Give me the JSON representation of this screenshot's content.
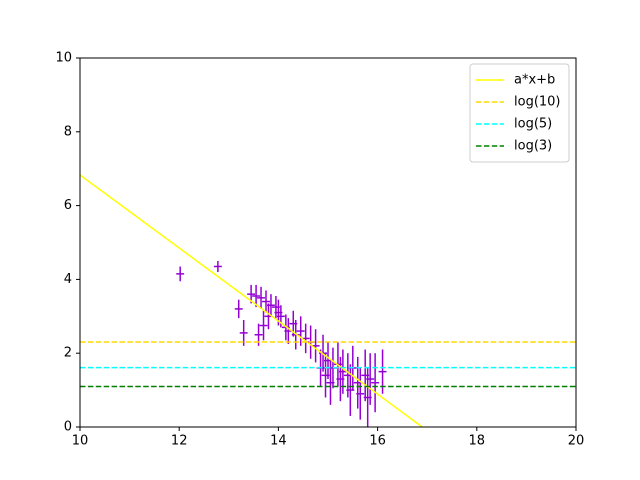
{
  "chart_data": {
    "type": "line",
    "xlim": [
      10,
      20
    ],
    "ylim": [
      0,
      10
    ],
    "xticks": [
      10,
      12,
      14,
      16,
      18,
      20
    ],
    "yticks": [
      0,
      2,
      4,
      6,
      8,
      10
    ],
    "legend": "upper right",
    "series": [
      {
        "type": "errorbar",
        "color": "#9400d3",
        "x": [
          12.02,
          12.78,
          13.2,
          13.3,
          13.45,
          13.55,
          13.6,
          13.65,
          13.7,
          13.75,
          13.8,
          13.85,
          13.95,
          14.0,
          14.05,
          14.15,
          14.2,
          14.3,
          14.35,
          14.45,
          14.55,
          14.65,
          14.75,
          14.85,
          14.9,
          14.95,
          15.0,
          15.05,
          15.1,
          15.2,
          15.25,
          15.3,
          15.4,
          15.45,
          15.5,
          15.6,
          15.65,
          15.75,
          15.8,
          15.85,
          15.95,
          16.1
        ],
        "values": [
          4.15,
          4.35,
          3.2,
          2.55,
          3.6,
          3.55,
          2.5,
          3.5,
          2.75,
          3.4,
          3.0,
          3.3,
          3.25,
          3.1,
          3.0,
          2.7,
          2.6,
          2.8,
          2.5,
          2.6,
          2.4,
          2.3,
          2.2,
          1.6,
          2.0,
          1.4,
          1.8,
          1.2,
          1.6,
          1.7,
          1.3,
          1.5,
          1.4,
          1.0,
          1.6,
          1.2,
          0.9,
          1.4,
          0.8,
          1.3,
          1.2,
          1.5
        ],
        "yerr": [
          0.2,
          0.15,
          0.25,
          0.35,
          0.25,
          0.3,
          0.3,
          0.3,
          0.4,
          0.3,
          0.35,
          0.3,
          0.3,
          0.35,
          0.3,
          0.35,
          0.35,
          0.35,
          0.4,
          0.4,
          0.4,
          0.45,
          0.45,
          0.5,
          0.5,
          0.6,
          0.5,
          0.6,
          0.55,
          0.6,
          0.6,
          0.6,
          0.6,
          0.7,
          0.6,
          0.7,
          0.7,
          0.7,
          0.8,
          0.7,
          0.8,
          0.6
        ],
        "xerr": 0.08
      },
      {
        "name": "a*x+b",
        "color": "#ffff00",
        "style": "solid",
        "x": [
          10,
          16.9
        ],
        "values": [
          6.83,
          0
        ]
      },
      {
        "name": "log(10)",
        "color": "#ffd700",
        "style": "dashed",
        "x": [
          10,
          20
        ],
        "values": [
          2.303,
          2.303
        ]
      },
      {
        "name": "log(5)",
        "color": "#00ffff",
        "style": "dashed",
        "x": [
          10,
          20
        ],
        "values": [
          1.609,
          1.609
        ]
      },
      {
        "name": "log(3)",
        "color": "#008000",
        "style": "dashed",
        "x": [
          10,
          20
        ],
        "values": [
          1.099,
          1.099
        ]
      }
    ]
  }
}
